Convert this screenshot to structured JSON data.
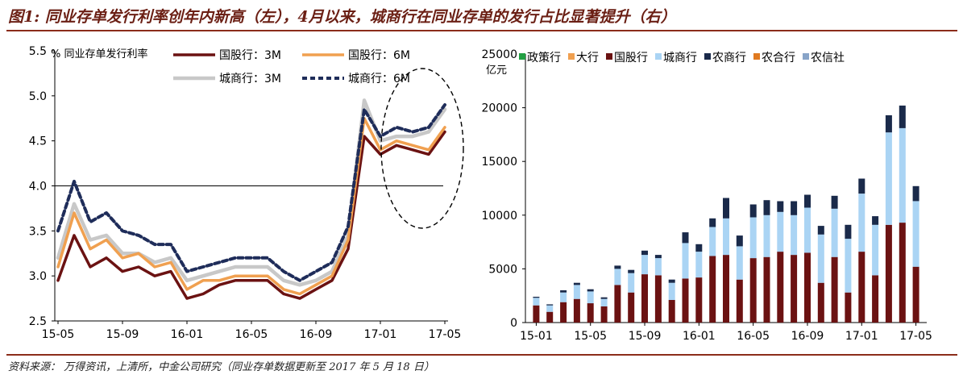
{
  "header": {
    "title": "图1: 同业存单发行利率创年内新高（左），4月以来，城商行在同业存单的发行占比显著提升（右）"
  },
  "footer": {
    "source": "资料来源：  万得资讯，上清所，中金公司研究（同业存单数据更新至 2017 年 5 月 18 日）"
  },
  "chart_data": [
    {
      "type": "line",
      "ylabel": "% 同业存单发行利率",
      "ylim": [
        2.5,
        5.5
      ],
      "yticks": [
        "2.5",
        "3.0",
        "3.5",
        "4.0",
        "4.5",
        "5.0",
        "5.5"
      ],
      "xtick_labels": [
        "15-05",
        "15-09",
        "16-01",
        "16-05",
        "16-09",
        "17-01",
        "17-05"
      ],
      "reference_line": 4.0,
      "legend_position": "top",
      "colors": {
        "gg3m": "#6b1212",
        "gg6m": "#f0a050",
        "cs3m": "#c8c8c8",
        "cs6m": "#1f2d5a",
        "annotation": "#000000"
      },
      "x": [
        "2015-05",
        "2015-06",
        "2015-07",
        "2015-08",
        "2015-09",
        "2015-10",
        "2015-11",
        "2015-12",
        "2016-01",
        "2016-02",
        "2016-03",
        "2016-04",
        "2016-05",
        "2016-06",
        "2016-07",
        "2016-08",
        "2016-09",
        "2016-10",
        "2016-11",
        "2016-12",
        "2017-01",
        "2017-02",
        "2017-03",
        "2017-04",
        "2017-05"
      ],
      "series": [
        {
          "name": "国股行：3M",
          "values": [
            2.95,
            3.45,
            3.1,
            3.2,
            3.05,
            3.1,
            3.0,
            3.05,
            2.75,
            2.8,
            2.9,
            2.95,
            2.95,
            2.95,
            2.8,
            2.75,
            2.85,
            2.95,
            3.3,
            4.55,
            4.35,
            4.45,
            4.4,
            4.35,
            4.6
          ]
        },
        {
          "name": "国股行：6M",
          "values": [
            3.1,
            3.7,
            3.3,
            3.4,
            3.2,
            3.25,
            3.1,
            3.15,
            2.85,
            2.95,
            2.95,
            3.0,
            3.0,
            3.0,
            2.85,
            2.8,
            2.9,
            3.0,
            3.4,
            4.75,
            4.4,
            4.5,
            4.45,
            4.4,
            4.65
          ]
        },
        {
          "name": "城商行：3M",
          "values": [
            3.2,
            3.8,
            3.4,
            3.45,
            3.25,
            3.25,
            3.15,
            3.2,
            2.95,
            3.0,
            3.05,
            3.1,
            3.1,
            3.1,
            2.95,
            2.9,
            2.95,
            3.05,
            3.45,
            4.95,
            4.5,
            4.55,
            4.55,
            4.6,
            4.85
          ]
        },
        {
          "name": "城商行：6M",
          "values": [
            3.5,
            4.05,
            3.6,
            3.7,
            3.5,
            3.45,
            3.35,
            3.35,
            3.05,
            3.1,
            3.15,
            3.2,
            3.2,
            3.2,
            3.05,
            2.95,
            3.05,
            3.15,
            3.55,
            4.85,
            4.55,
            4.65,
            4.6,
            4.65,
            4.9
          ]
        }
      ]
    },
    {
      "type": "bar",
      "stacked": true,
      "yunit": "亿元",
      "ylim": [
        0,
        25000
      ],
      "yticks": [
        "0",
        "5000",
        "10000",
        "15000",
        "20000",
        "25000"
      ],
      "xtick_labels": [
        "15-01",
        "15-05",
        "15-09",
        "16-01",
        "16-05",
        "16-09",
        "17-01",
        "17-05"
      ],
      "legend_position": "top",
      "categories": [
        "2015-01",
        "2015-02",
        "2015-03",
        "2015-04",
        "2015-05",
        "2015-06",
        "2015-07",
        "2015-08",
        "2015-09",
        "2015-10",
        "2015-11",
        "2015-12",
        "2016-01",
        "2016-02",
        "2016-03",
        "2016-04",
        "2016-05",
        "2016-06",
        "2016-07",
        "2016-08",
        "2016-09",
        "2016-10",
        "2016-11",
        "2016-12",
        "2017-01",
        "2017-02",
        "2017-03",
        "2017-04",
        "2017-05"
      ],
      "series": [
        {
          "name": "政策行",
          "color": "#22a043",
          "values": [
            0,
            0,
            0,
            0,
            0,
            0,
            0,
            0,
            0,
            0,
            0,
            0,
            0,
            0,
            0,
            0,
            0,
            0,
            0,
            0,
            0,
            0,
            0,
            0,
            0,
            0,
            0,
            0,
            0
          ]
        },
        {
          "name": "大行",
          "color": "#f0a050",
          "values": [
            0,
            0,
            0,
            0,
            0,
            0,
            0,
            0,
            0,
            0,
            0,
            0,
            0,
            0,
            0,
            0,
            0,
            0,
            0,
            0,
            0,
            0,
            0,
            0,
            0,
            0,
            0,
            0,
            0
          ]
        },
        {
          "name": "国股行",
          "color": "#6b1212",
          "values": [
            1600,
            1000,
            1900,
            2200,
            1800,
            1500,
            3500,
            2800,
            4500,
            4400,
            2100,
            4100,
            4200,
            6200,
            6300,
            4000,
            6000,
            6100,
            6600,
            6300,
            6500,
            3700,
            6100,
            2800,
            6600,
            4400,
            9100,
            9300,
            5200
          ]
        },
        {
          "name": "城商行",
          "color": "#aad4f4",
          "values": [
            700,
            600,
            900,
            1300,
            1100,
            700,
            1500,
            1800,
            1800,
            1600,
            1600,
            3300,
            2400,
            2700,
            3400,
            3100,
            3800,
            3900,
            3700,
            3700,
            4200,
            4500,
            4500,
            5000,
            5400,
            4700,
            8600,
            8800,
            6100
          ]
        },
        {
          "name": "农商行",
          "color": "#1a2a4a",
          "values": [
            100,
            100,
            200,
            200,
            200,
            150,
            300,
            300,
            400,
            300,
            300,
            1000,
            700,
            800,
            1900,
            1000,
            1200,
            1400,
            1000,
            1300,
            1200,
            800,
            1200,
            1300,
            1400,
            800,
            1600,
            2100,
            1400
          ]
        },
        {
          "name": "农合行",
          "color": "#e07a20",
          "values": [
            0,
            0,
            0,
            0,
            0,
            0,
            0,
            0,
            0,
            0,
            0,
            0,
            0,
            0,
            0,
            0,
            0,
            0,
            0,
            0,
            0,
            0,
            0,
            0,
            0,
            0,
            0,
            0,
            0
          ]
        },
        {
          "name": "农信社",
          "color": "#88a4c8",
          "values": [
            0,
            0,
            0,
            0,
            0,
            0,
            0,
            0,
            0,
            0,
            0,
            0,
            0,
            0,
            0,
            0,
            0,
            0,
            0,
            0,
            0,
            0,
            0,
            0,
            0,
            0,
            0,
            0,
            0
          ]
        }
      ]
    }
  ]
}
